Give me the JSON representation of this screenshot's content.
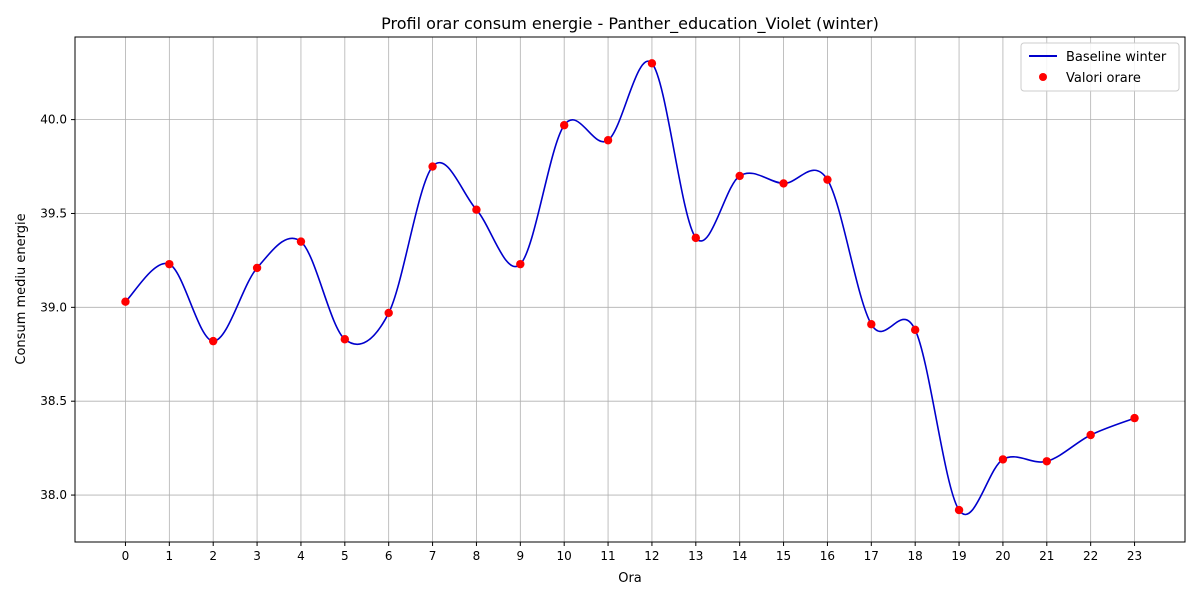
{
  "chart_data": {
    "type": "line",
    "title": "Profil orar consum energie - Panther_education_Violet (winter)",
    "xlabel": "Ora",
    "ylabel": "Consum mediu energie",
    "x": [
      0,
      1,
      2,
      3,
      4,
      5,
      6,
      7,
      8,
      9,
      10,
      11,
      12,
      13,
      14,
      15,
      16,
      17,
      18,
      19,
      20,
      21,
      22,
      23
    ],
    "x_tick_labels": [
      "0",
      "1",
      "2",
      "3",
      "4",
      "5",
      "6",
      "7",
      "8",
      "9",
      "10",
      "11",
      "12",
      "13",
      "14",
      "15",
      "16",
      "17",
      "18",
      "19",
      "20",
      "21",
      "22",
      "23"
    ],
    "y_ticks": [
      38.0,
      38.5,
      39.0,
      39.5,
      40.0
    ],
    "y_tick_labels": [
      "38.0",
      "38.5",
      "39.0",
      "39.5",
      "40.0"
    ],
    "xlim": [
      -1.15,
      24.15
    ],
    "ylim": [
      37.75,
      40.44
    ],
    "grid": true,
    "legend_position": "upper-right",
    "series": [
      {
        "name": "Baseline winter",
        "kind": "smooth-line",
        "color": "#0000cc",
        "values": [
          39.03,
          39.23,
          38.82,
          39.21,
          39.35,
          38.83,
          38.97,
          39.75,
          39.52,
          39.23,
          39.97,
          39.89,
          40.3,
          39.37,
          39.7,
          39.66,
          39.68,
          38.91,
          38.88,
          37.92,
          38.19,
          38.18,
          38.32,
          38.41
        ]
      },
      {
        "name": "Valori orare",
        "kind": "scatter",
        "color": "#ff0000",
        "values": [
          39.03,
          39.23,
          38.82,
          39.21,
          39.35,
          38.83,
          38.97,
          39.75,
          39.52,
          39.23,
          39.97,
          39.89,
          40.3,
          39.37,
          39.7,
          39.66,
          39.68,
          38.91,
          38.88,
          37.92,
          38.19,
          38.18,
          38.32,
          38.41
        ]
      }
    ]
  }
}
